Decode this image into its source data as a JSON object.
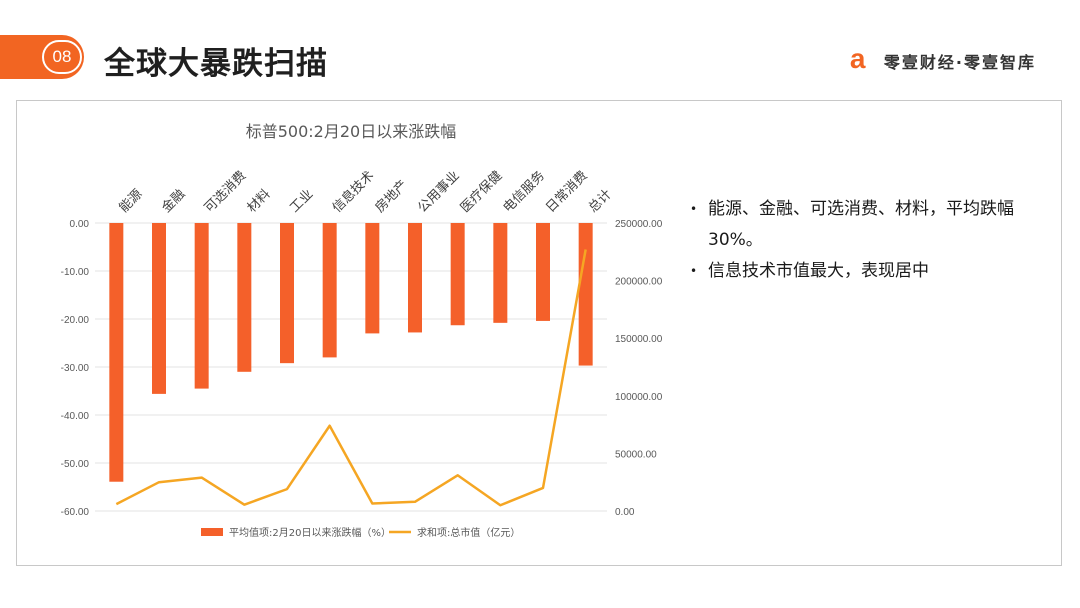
{
  "header": {
    "slide_number": "08",
    "title": "全球大暴跌扫描",
    "brand_text": "零壹财经·零壹智库",
    "brand_logo_icon": "letter-a-logo-icon"
  },
  "colors": {
    "accent": "#f26522",
    "bar": "#f4602a",
    "line": "#f5a623"
  },
  "chart_data": {
    "type": "bar",
    "title": "标普500:2月20日以来涨跌幅",
    "categories": [
      "能源",
      "金融",
      "可选消费",
      "材料",
      "工业",
      "信息技术",
      "房地产",
      "公用事业",
      "医疗保健",
      "电信服务",
      "日常消费",
      "总计"
    ],
    "series": [
      {
        "name": "平均值项:2月20日以来涨跌幅（%）",
        "type": "bar",
        "axis": "left",
        "values": [
          -53.9,
          -35.6,
          -34.5,
          -31.0,
          -29.2,
          -28.0,
          -23.0,
          -22.8,
          -21.3,
          -20.8,
          -20.4,
          -29.7
        ]
      },
      {
        "name": "求和项:总市值（亿元）",
        "type": "line",
        "axis": "right",
        "values": [
          6000,
          25000,
          29000,
          5500,
          19000,
          74000,
          6500,
          8000,
          31000,
          5000,
          20000,
          227000
        ]
      }
    ],
    "y_left": {
      "min": -60,
      "max": 0,
      "ticks": [
        "0.00",
        "-10.00",
        "-20.00",
        "-30.00",
        "-40.00",
        "-50.00",
        "-60.00"
      ]
    },
    "y_right": {
      "min": 0,
      "max": 250000,
      "ticks": [
        "250000.00",
        "200000.00",
        "150000.00",
        "100000.00",
        "50000.00",
        "0.00"
      ]
    },
    "grid": true,
    "legend_position": "bottom"
  },
  "bullets": [
    "能源、金融、可选消费、材料，平均跌幅30%。",
    "信息技术市值最大，表现居中"
  ],
  "bullet_marker": "•"
}
